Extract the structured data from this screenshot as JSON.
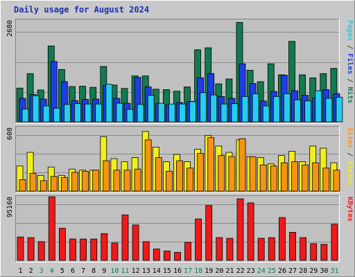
{
  "chart_data": {
    "type": "bar",
    "title": "Daily usage for August 2024",
    "categories": [
      "1",
      "2",
      "3",
      "4",
      "5",
      "6",
      "7",
      "8",
      "9",
      "10",
      "11",
      "12",
      "13",
      "14",
      "15",
      "16",
      "17",
      "18",
      "19",
      "20",
      "21",
      "22",
      "23",
      "24",
      "25",
      "26",
      "27",
      "28",
      "29",
      "30",
      "31"
    ],
    "weekend_categories": [
      "3",
      "4",
      "10",
      "11",
      "17",
      "18",
      "24",
      "25",
      "31"
    ],
    "colors": {
      "hits": "#127a4e",
      "files": "#1d3ee0",
      "pages": "#26cdf0",
      "visits": "#f2ee1b",
      "sites": "#f49417",
      "kbytes": "#ee1a1a",
      "weekday_label": "#000000",
      "weekend_label": "#127a4e",
      "title": "#1a2fb0"
    },
    "panels": [
      {
        "id": "hits_files_pages",
        "max_label": "2680",
        "ymax": 2680,
        "side_label": {
          "parts": [
            {
              "text": "Pages",
              "color": "#26cdf0"
            },
            {
              "text": " / ",
              "color": "#444444"
            },
            {
              "text": "Files",
              "color": "#1d3ee0"
            },
            {
              "text": " / ",
              "color": "#444444"
            },
            {
              "text": "Hits",
              "color": "#127a4e"
            }
          ]
        },
        "series": [
          {
            "name": "Hits",
            "color": "#127a4e",
            "values": [
              890,
              1270,
              840,
              2000,
              1380,
              930,
              940,
              910,
              1460,
              970,
              880,
              1210,
              1210,
              860,
              850,
              810,
              920,
              1900,
              1950,
              1000,
              1130,
              2620,
              1360,
              1060,
              1530,
              1240,
              2120,
              1240,
              1160,
              1270,
              1410
            ]
          },
          {
            "name": "Files",
            "color": "#1d3ee0",
            "values": [
              620,
              720,
              600,
              1590,
              1060,
              560,
              590,
              600,
              960,
              620,
              490,
              1170,
              920,
              480,
              450,
              510,
              540,
              1160,
              1270,
              670,
              620,
              1530,
              1010,
              550,
              800,
              1230,
              820,
              700,
              630,
              850,
              740
            ]
          },
          {
            "name": "Pages",
            "color": "#26cdf0",
            "values": [
              340,
              690,
              420,
              360,
              460,
              480,
              470,
              470,
              990,
              490,
              330,
              460,
              700,
              490,
              470,
              470,
              530,
              770,
              710,
              470,
              480,
              670,
              740,
              420,
              670,
              740,
              580,
              550,
              820,
              620,
              650
            ]
          }
        ]
      },
      {
        "id": "visits_sites",
        "max_label": "608",
        "ymax": 608,
        "side_label": {
          "parts": [
            {
              "text": "Sites",
              "color": "#f49417"
            },
            {
              "text": " / ",
              "color": "#444444"
            },
            {
              "text": "Visits",
              "color": "#f2ee1b"
            }
          ]
        },
        "series": [
          {
            "name": "Visits",
            "color": "#f2ee1b",
            "values": [
              240,
              370,
              150,
              230,
              150,
              210,
              200,
              200,
              520,
              310,
              280,
              320,
              570,
              420,
              280,
              350,
              280,
              400,
              530,
              430,
              370,
              490,
              330,
              320,
              260,
              340,
              380,
              280,
              430,
              410,
              270
            ]
          },
          {
            "name": "Sites",
            "color": "#f49417",
            "values": [
              110,
              170,
              100,
              140,
              130,
              180,
              190,
              200,
              290,
              200,
              200,
              210,
              490,
              320,
              190,
              290,
              220,
              360,
              510,
              340,
              330,
              500,
              330,
              250,
              240,
              270,
              280,
              250,
              270,
              220,
              200
            ]
          }
        ]
      },
      {
        "id": "kbytes",
        "max_label": "95160",
        "ymax": 95160,
        "side_label": {
          "parts": [
            {
              "text": "KBytes",
              "color": "#ee1a1a"
            }
          ]
        },
        "series": [
          {
            "name": "KBytes",
            "color": "#ee1a1a",
            "values": [
              35000,
              34000,
              28000,
              95000,
              48000,
              32000,
              32000,
              32000,
              40000,
              26000,
              68000,
              53000,
              28000,
              17000,
              14000,
              12000,
              27000,
              62000,
              82000,
              34000,
              33000,
              92000,
              86000,
              33000,
              34000,
              64000,
              42000,
              34000,
              25000,
              24000,
              54000
            ]
          }
        ]
      }
    ]
  }
}
